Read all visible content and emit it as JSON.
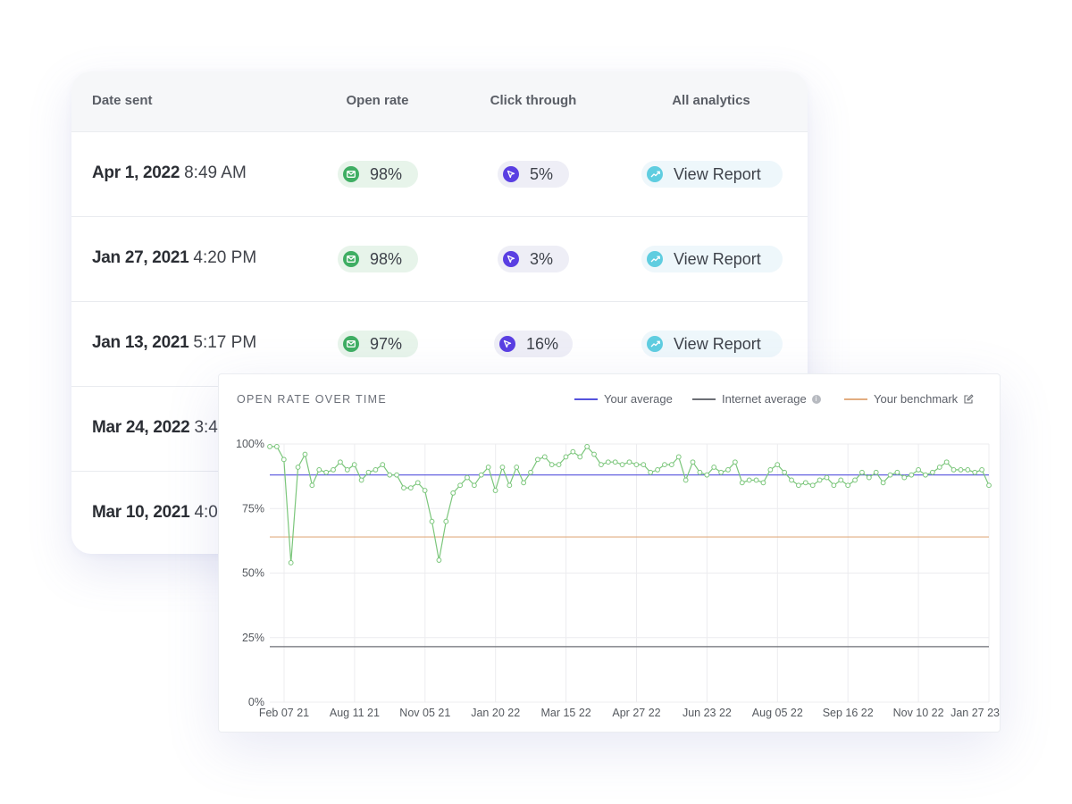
{
  "table": {
    "headers": {
      "date_sent": "Date sent",
      "open_rate": "Open rate",
      "click_through": "Click through",
      "all_analytics": "All analytics"
    },
    "rows": [
      {
        "date": "Apr 1, 2022",
        "time": "8:49 AM",
        "open_rate": "98%",
        "click_through": "5%",
        "report": "View Report"
      },
      {
        "date": "Jan 27, 2021",
        "time": "4:20 PM",
        "open_rate": "98%",
        "click_through": "3%",
        "report": "View Report"
      },
      {
        "date": "Jan 13, 2021",
        "time": "5:17 PM",
        "open_rate": "97%",
        "click_through": "16%",
        "report": "View Report"
      },
      {
        "date": "Mar 24, 2022",
        "time": "3:4"
      },
      {
        "date": "Mar 10, 2021",
        "time": "4:0"
      }
    ]
  },
  "icons": {
    "open_rate": "envelope-icon",
    "click_through": "cursor-icon",
    "report": "trend-up-icon",
    "internet_info": "info-icon",
    "benchmark_edit": "edit-icon"
  },
  "colors": {
    "open_rate_series": "#7bc67b",
    "your_average": "#5553dd",
    "internet_average": "#6c6f75",
    "benchmark": "#e2ad80",
    "open_pill_bg": "#e7f4ea",
    "open_icon": "#3fae63",
    "click_icon": "#5a3fe2",
    "report_icon": "#5fcde0"
  },
  "chart": {
    "title": "OPEN RATE OVER TIME",
    "legend": {
      "your_average": "Your average",
      "internet_average": "Internet average",
      "benchmark": "Your benchmark"
    }
  },
  "chart_data": {
    "type": "line",
    "title": "OPEN RATE OVER TIME",
    "xlabel": "",
    "ylabel": "",
    "x_tick_labels": [
      "Feb 07 21",
      "Aug 11 21",
      "Nov 05 21",
      "Jan 20 22",
      "Mar 15 22",
      "Apr 27 22",
      "Jun 23 22",
      "Aug 05 22",
      "Sep 16 22",
      "Nov 10 22",
      "Jan 27 23"
    ],
    "y_tick_labels": [
      "100%",
      "75%",
      "50%",
      "25%",
      "0%"
    ],
    "y_ticks": [
      100,
      75,
      50,
      25,
      0
    ],
    "ylim": [
      0,
      100
    ],
    "grid": true,
    "series": [
      {
        "name": "Open rate",
        "type": "line",
        "values": [
          99,
          99,
          94,
          54,
          91,
          96,
          84,
          90,
          89,
          90,
          93,
          90,
          92,
          86,
          89,
          90,
          92,
          88,
          88,
          83,
          83,
          85,
          82,
          70,
          55,
          70,
          81,
          84,
          87,
          84,
          88,
          91,
          82,
          91,
          84,
          91,
          85,
          89,
          94,
          95,
          92,
          92,
          95,
          97,
          95,
          99,
          96,
          92,
          93,
          93,
          92,
          93,
          92,
          92,
          89,
          90,
          92,
          92,
          95,
          86,
          93,
          89,
          88,
          91,
          89,
          90,
          93,
          85,
          86,
          86,
          85,
          90,
          92,
          89,
          86,
          84,
          85,
          84,
          86,
          87,
          84,
          86,
          84,
          86,
          89,
          87,
          89,
          85,
          88,
          89,
          87,
          88,
          90,
          88,
          89,
          91,
          93,
          90,
          90,
          90,
          89,
          90,
          84
        ]
      },
      {
        "name": "Your average",
        "type": "line",
        "values": [
          88
        ]
      },
      {
        "name": "Internet average",
        "type": "line",
        "values": [
          21.5
        ]
      },
      {
        "name": "Your benchmark",
        "type": "line",
        "values": [
          64
        ]
      }
    ],
    "legend_position": "top-right"
  }
}
